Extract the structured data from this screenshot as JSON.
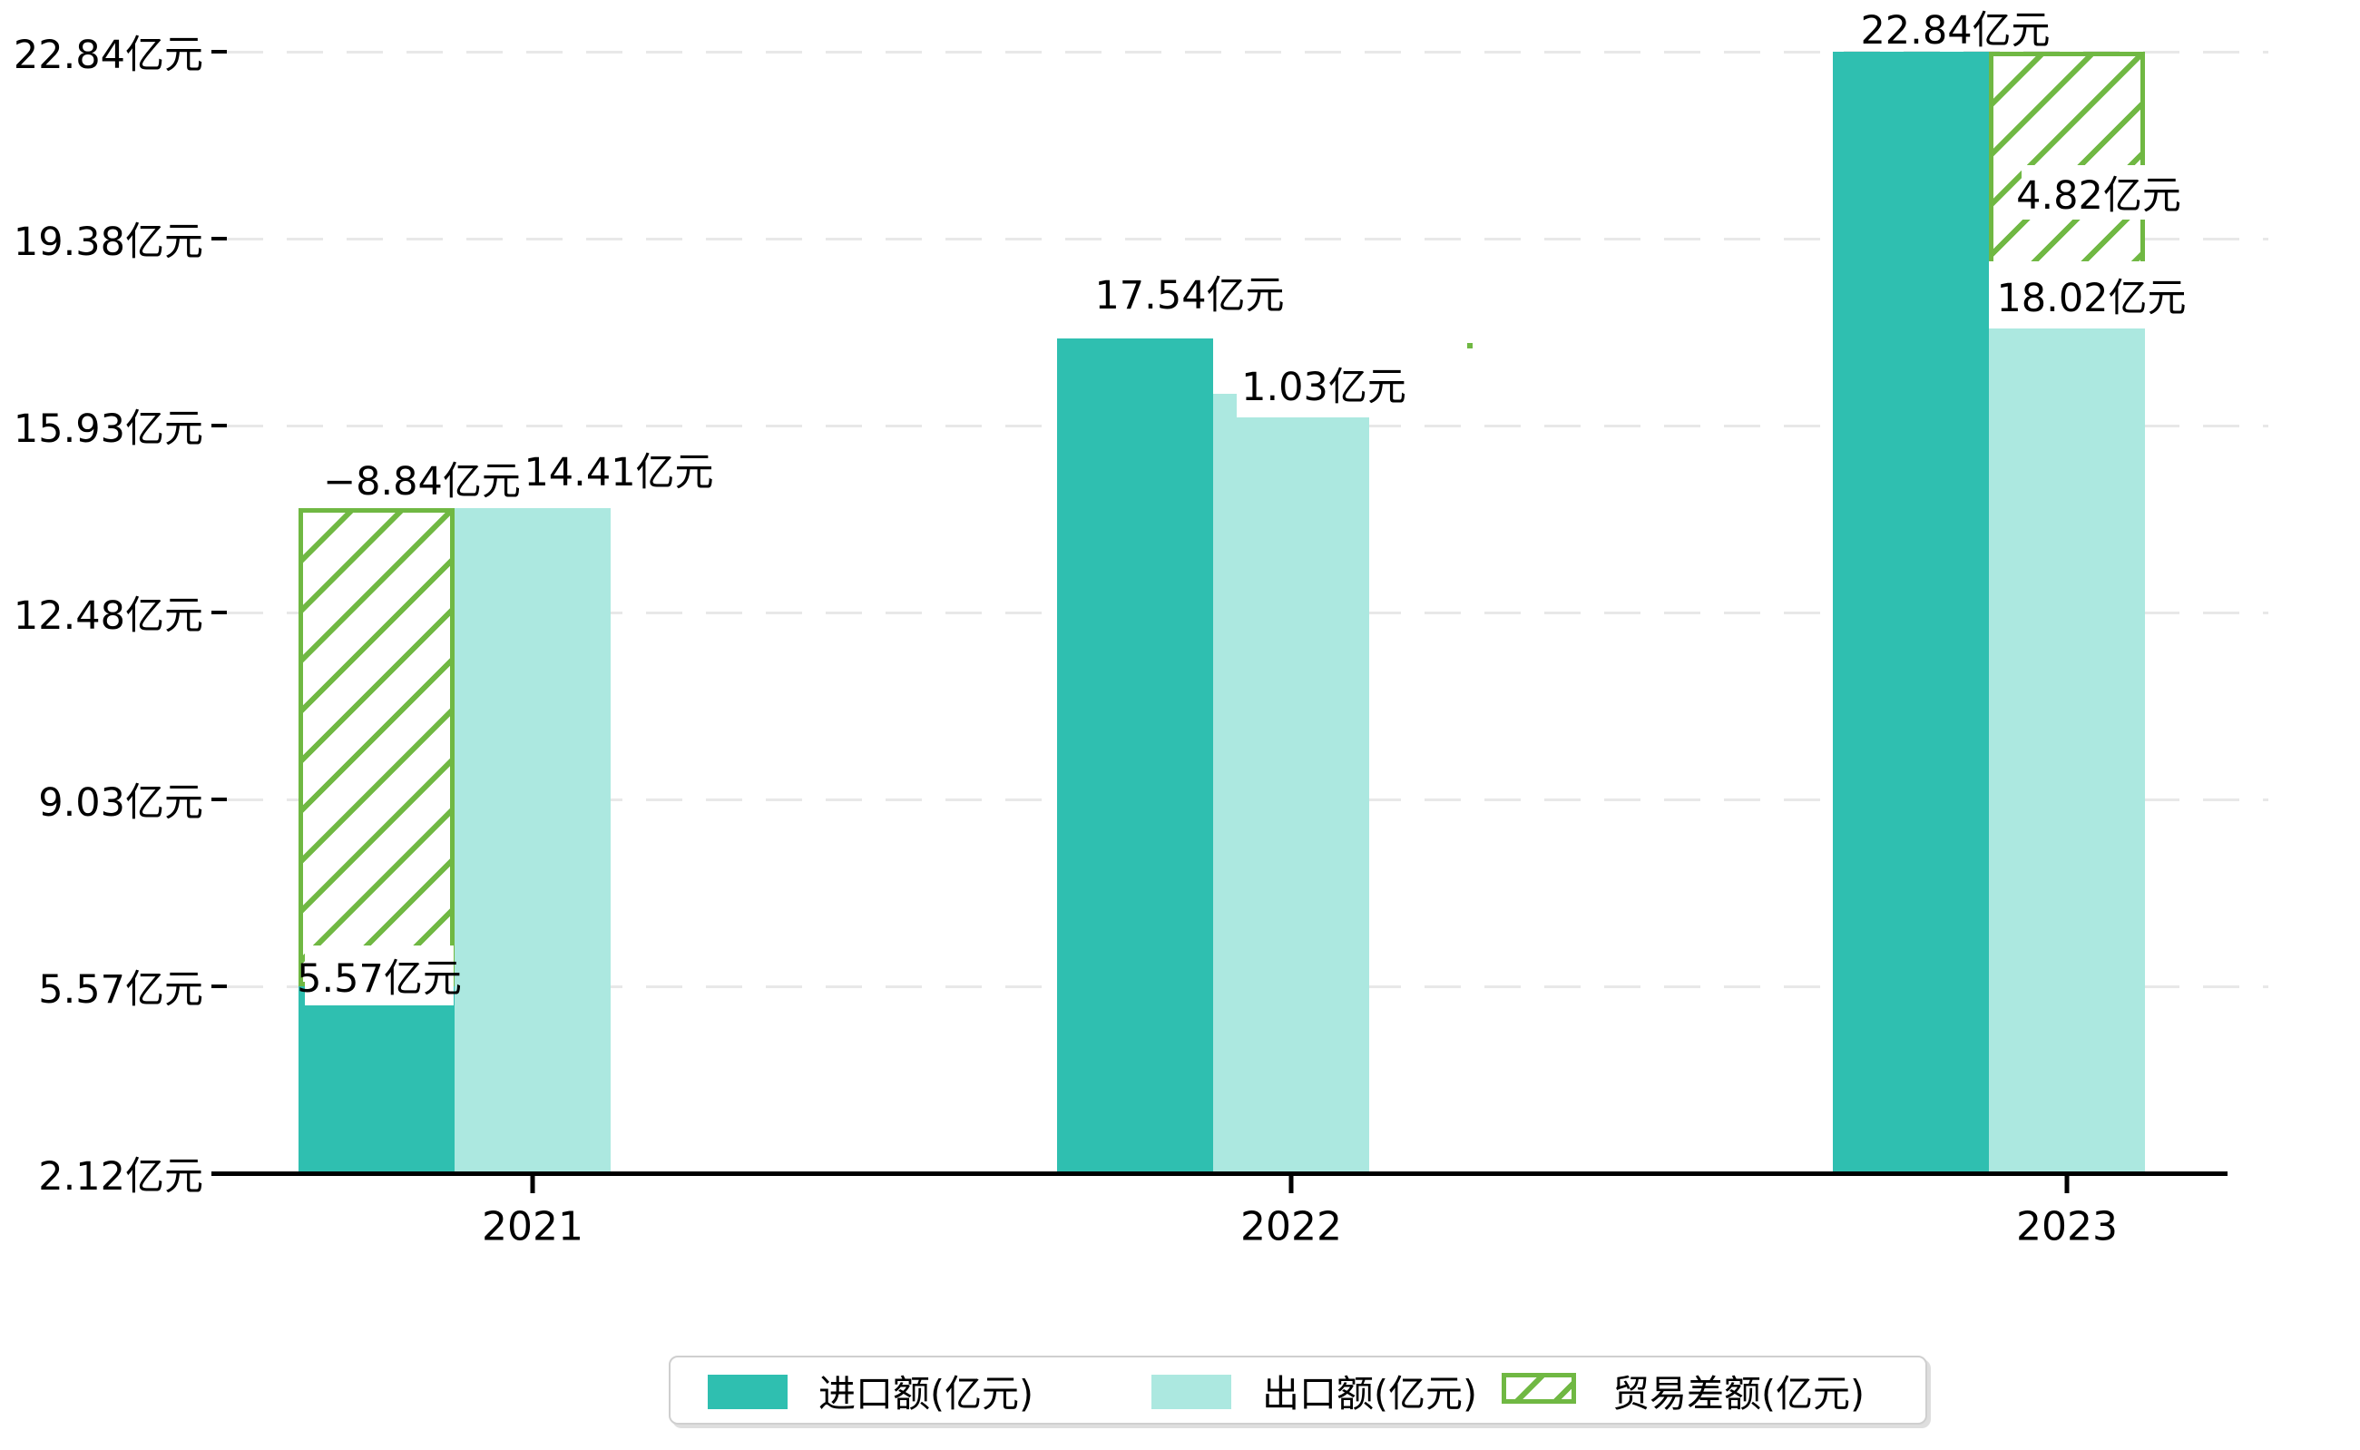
{
  "chart_data": {
    "type": "bar",
    "title": "",
    "categories": [
      "2021",
      "2022",
      "2023"
    ],
    "series": [
      {
        "name": "进口额(亿元)",
        "role": "import",
        "color": "#2fbfb0",
        "values": [
          5.57,
          17.54,
          22.84
        ],
        "labels": [
          "5.57亿元",
          "17.54亿元",
          "22.84亿元"
        ]
      },
      {
        "name": "出口额(亿元)",
        "role": "export",
        "color": "#ace8e0",
        "values": [
          14.41,
          16.51,
          18.02
        ],
        "labels": [
          "14.41亿元",
          "",
          "18.02亿元"
        ]
      },
      {
        "name": "贸易差额(亿元)",
        "role": "trade-balance",
        "color": "#70b843",
        "style": "hatched",
        "values": [
          -8.84,
          1.03,
          4.82
        ],
        "labels": [
          "−8.84亿元",
          "1.03亿元",
          "4.82亿元"
        ]
      }
    ],
    "y_axis": {
      "tick_values": [
        2.12,
        5.57,
        9.03,
        12.48,
        15.93,
        19.38,
        22.84
      ],
      "tick_labels": [
        "2.12亿元",
        "5.57亿元",
        "9.03亿元",
        "12.48亿元",
        "15.93亿元",
        "19.38亿元",
        "22.84亿元"
      ],
      "min": 2.12,
      "max": 22.84
    },
    "grid": "horizontal-dashed",
    "gridline_color": "#e8e8e8",
    "axis_color": "#000000",
    "legend_position": "bottom",
    "notes": "2022 trade-balance hatched bar hidden behind its 1.03亿元 label; only a small green corner square remains visible"
  }
}
